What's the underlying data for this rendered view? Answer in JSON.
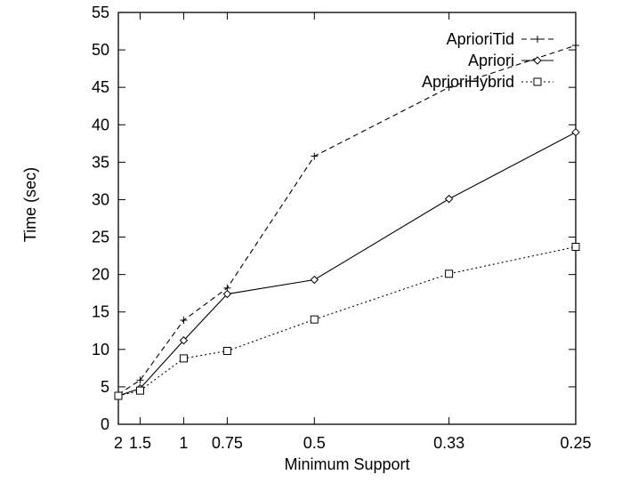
{
  "chart_data": {
    "type": "line",
    "title": "",
    "xlabel": "Minimum Support",
    "ylabel": "Time (sec)",
    "categories": [
      "2",
      "1.5",
      "1",
      "0.75",
      "0.5",
      "0.33",
      "0.25"
    ],
    "ylim": [
      0,
      55
    ],
    "yticks": [
      0,
      5,
      10,
      15,
      20,
      25,
      30,
      35,
      40,
      45,
      50,
      55
    ],
    "grid": false,
    "legend": "top-right",
    "series": [
      {
        "name": "AprioriTid",
        "marker": "plus",
        "dash": "dashed",
        "values": [
          4.0,
          5.9,
          13.9,
          18.2,
          35.8,
          45.0,
          50.6
        ]
      },
      {
        "name": "Apriori",
        "marker": "diamond",
        "dash": "solid",
        "values": [
          3.8,
          4.8,
          11.2,
          17.4,
          19.3,
          30.1,
          39.0
        ]
      },
      {
        "name": "AprioriHybrid",
        "marker": "square",
        "dash": "dotted",
        "values": [
          3.8,
          4.5,
          8.8,
          9.8,
          14.0,
          20.1,
          23.7
        ]
      }
    ]
  }
}
